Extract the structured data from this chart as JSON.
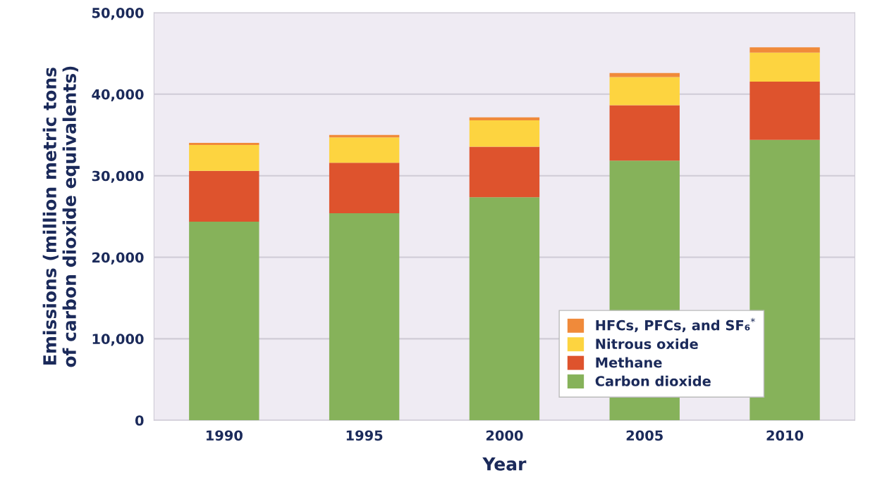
{
  "chart_data": {
    "type": "bar",
    "stacked": true,
    "xlabel": "Year",
    "ylabel": "Emissions (million metric tons\nof carbon dioxide equivalents)",
    "categories": [
      "1990",
      "1995",
      "2000",
      "2005",
      "2010"
    ],
    "series": [
      {
        "name": "Carbon dioxide",
        "color": "#86b25a",
        "values": [
          24350,
          25400,
          27350,
          31850,
          34400
        ]
      },
      {
        "name": "Methane",
        "color": "#de532d",
        "values": [
          6250,
          6200,
          6200,
          6800,
          7150
        ]
      },
      {
        "name": "Nitrous oxide",
        "color": "#fdd440",
        "values": [
          3170,
          3100,
          3250,
          3450,
          3550
        ]
      },
      {
        "name": "HFCs, PFCs, and SF₆$^{*}$",
        "color": "#f08a3a",
        "values": [
          260,
          300,
          350,
          500,
          650
        ]
      }
    ],
    "ylim": [
      0,
      50000
    ],
    "yticks": [
      0,
      {
        "value": 10000,
        "label": "10,000"
      },
      {
        "value": 20000,
        "label": "20,000"
      },
      {
        "value": 30000,
        "label": "30,000"
      },
      {
        "value": 40000,
        "label": "40,000"
      },
      {
        "value": 50000,
        "label": "50,000"
      }
    ],
    "grid": "y",
    "legend": "bottom right"
  }
}
